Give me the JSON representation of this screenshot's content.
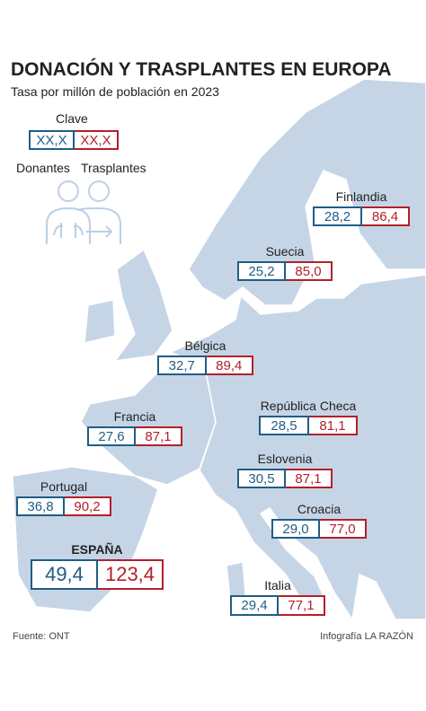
{
  "header": {
    "title": "DONACIÓN Y TRASPLANTES EN EUROPA",
    "subtitle": "Tasa por millón de población en 2023"
  },
  "legend": {
    "label": "Clave",
    "donors_sample": "XX,X",
    "transplants_sample": "XX,X",
    "donors_label": "Donantes",
    "transplants_label": "Trasplantes"
  },
  "countries": [
    {
      "name": "Finlandia",
      "donors": "28,2",
      "transplants": "86,4"
    },
    {
      "name": "Suecia",
      "donors": "25,2",
      "transplants": "85,0"
    },
    {
      "name": "Bélgica",
      "donors": "32,7",
      "transplants": "89,4"
    },
    {
      "name": "República Checa",
      "donors": "28,5",
      "transplants": "81,1"
    },
    {
      "name": "Francia",
      "donors": "27,6",
      "transplants": "87,1"
    },
    {
      "name": "Eslovenia",
      "donors": "30,5",
      "transplants": "87,1"
    },
    {
      "name": "Croacia",
      "donors": "29,0",
      "transplants": "77,0"
    },
    {
      "name": "Portugal",
      "donors": "36,8",
      "transplants": "90,2"
    },
    {
      "name": "ESPAÑA",
      "donors": "49,4",
      "transplants": "123,4"
    },
    {
      "name": "Italia",
      "donors": "29,4",
      "transplants": "77,1"
    }
  ],
  "footer": {
    "source": "Fuente: ONT",
    "credit": "Infografía LA RAZÓN"
  }
}
